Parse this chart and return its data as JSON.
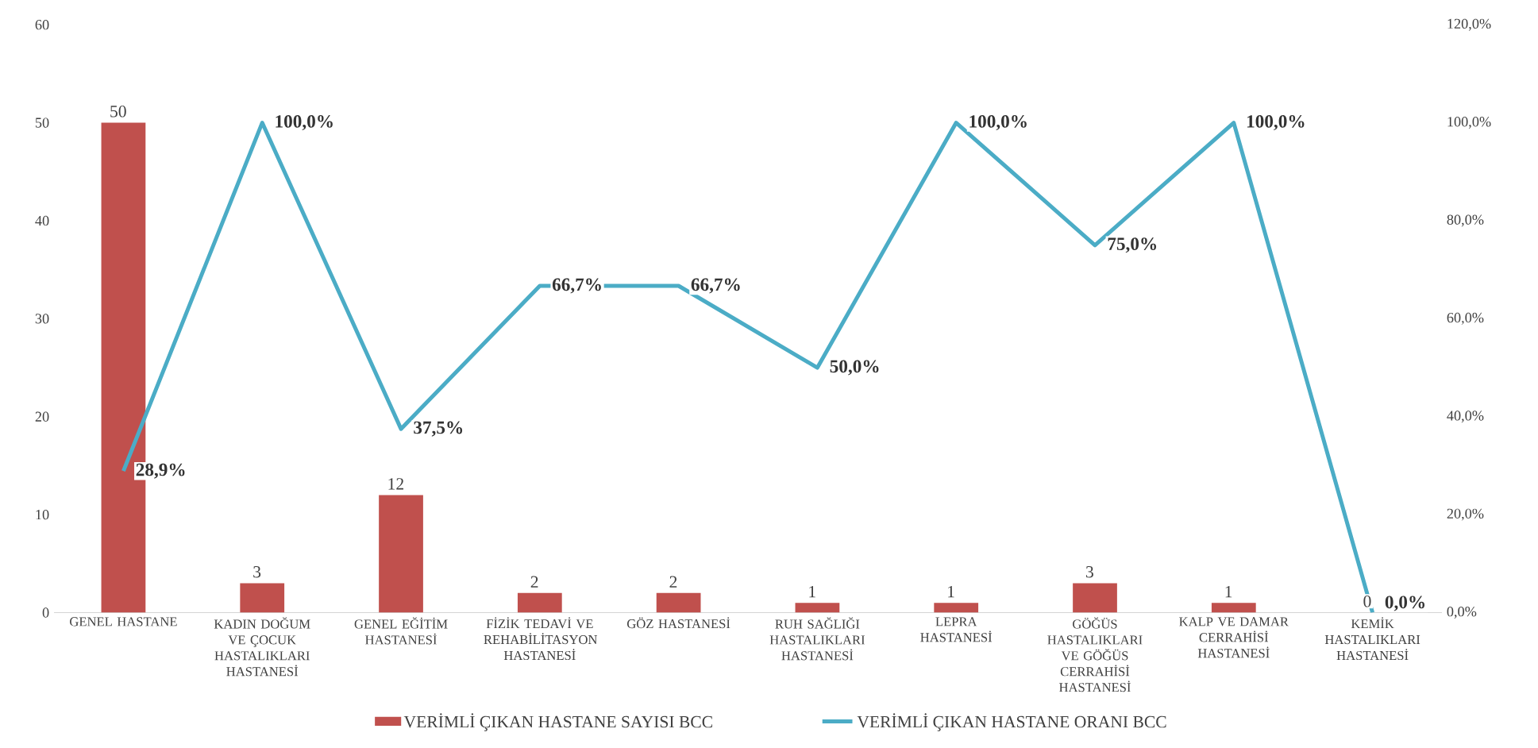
{
  "chart_data": {
    "type": "bar",
    "categories": [
      "GENEL HASTANE",
      "KADIN DOĞUM VE ÇOCUK HASTALIKLARI HASTANESİ",
      "GENEL EĞİTİM HASTANESİ",
      "FİZİK TEDAVİ VE REHABİLİTASYON HASTANESİ",
      "GÖZ HASTANESİ",
      "RUH SAĞLIĞI HASTALIKLARI HASTANESİ",
      "LEPRA HASTANESİ",
      "GÖĞÜS HASTALIKLARI VE GÖĞÜS CERRAHİSİ HASTANESİ",
      "KALP VE DAMAR CERRAHİSİ HASTANESİ",
      "KEMİK HASTALIKLARI HASTANESİ"
    ],
    "series": [
      {
        "name": "VERİMLİ ÇIKAN HASTANE SAYISI BCC",
        "color": "#c0504d",
        "values": [
          50,
          3,
          12,
          2,
          2,
          1,
          1,
          3,
          1,
          0
        ],
        "value_labels": [
          "50",
          "3",
          "12",
          "2",
          "2",
          "1",
          "1",
          "3",
          "1",
          "0"
        ]
      },
      {
        "name": "VERİMLİ ÇIKAN HASTANE ORANI BCC",
        "type": "line",
        "axis": "y2",
        "color": "#4bacc6",
        "values": [
          28.9,
          100,
          37.5,
          66.7,
          66.7,
          50,
          100,
          75,
          100,
          0
        ],
        "value_labels": [
          "28,9%",
          "100,0%",
          "37,5%",
          "66,7%",
          "66,7%",
          "50,0%",
          "100,0%",
          "75,0%",
          "100,0%",
          "0,0%"
        ]
      }
    ],
    "ylim": [
      0,
      60
    ],
    "yticks": [
      0,
      10,
      20,
      30,
      40,
      50,
      60
    ],
    "y2lim": [
      0,
      120
    ],
    "y2ticks": [
      {
        "value": 0,
        "label": "0,0%"
      },
      {
        "value": 20,
        "label": "20,0%"
      },
      {
        "value": 40,
        "label": "40,0%"
      },
      {
        "value": 60,
        "label": "60,0%"
      },
      {
        "value": 80,
        "label": "80,0%"
      },
      {
        "value": 100,
        "label": "100,0%"
      },
      {
        "value": 120,
        "label": "120,0%"
      }
    ],
    "legend": "bottom",
    "marker": "none"
  }
}
